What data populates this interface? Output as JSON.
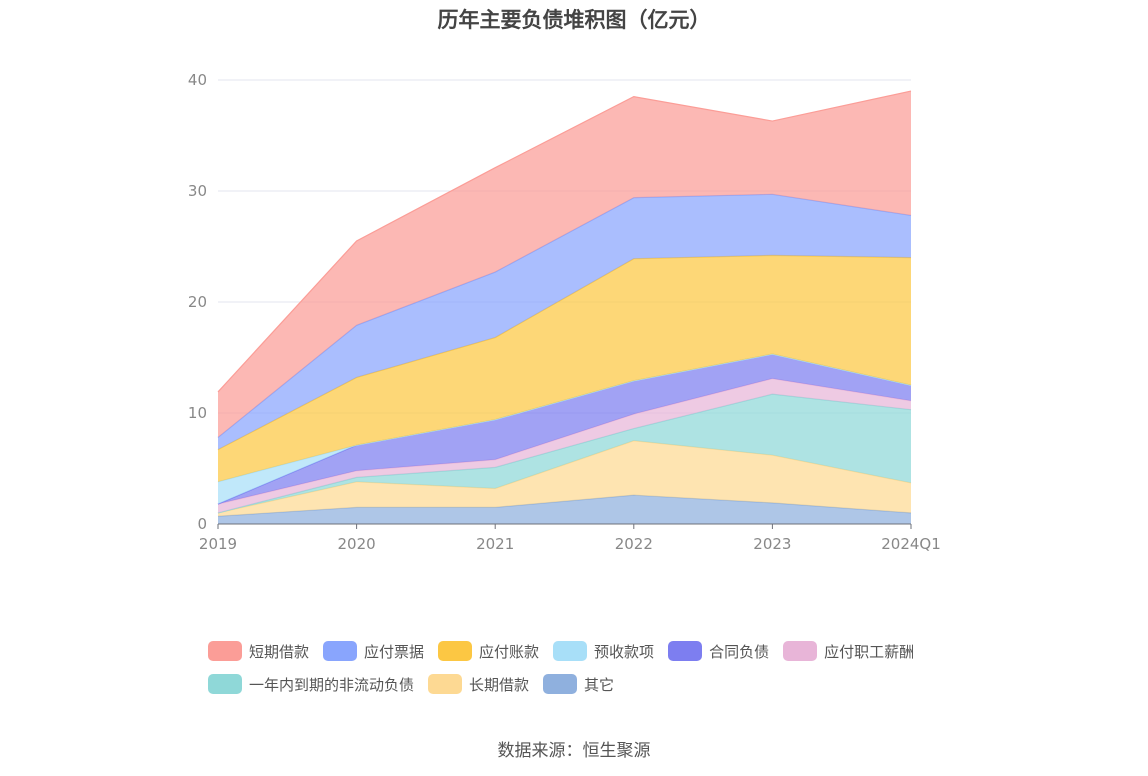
{
  "source_text": "数据来源：恒生聚源",
  "chart_data": {
    "type": "area",
    "stacked": true,
    "title": "历年主要负债堆积图（亿元）",
    "xlabel": "",
    "ylabel": "",
    "categories": [
      "2019",
      "2020",
      "2021",
      "2022",
      "2023",
      "2024Q1"
    ],
    "y_ticks": [
      "0",
      "10",
      "20",
      "30",
      "40"
    ],
    "ylim": [
      0,
      40
    ],
    "grid": "horizontal",
    "legend_position": "bottom",
    "series": [
      {
        "name": "其它",
        "color": "#8fb0de",
        "values": [
          0.7,
          1.5,
          1.5,
          2.6,
          1.9,
          1.0
        ]
      },
      {
        "name": "长期借款",
        "color": "#fdd993",
        "values": [
          0.3,
          2.3,
          1.7,
          4.9,
          4.3,
          2.7
        ]
      },
      {
        "name": "一年内到期的非流动负债",
        "color": "#8fd8d8",
        "values": [
          0.0,
          0.4,
          1.9,
          1.1,
          5.5,
          6.6
        ]
      },
      {
        "name": "应付职工薪酬",
        "color": "#e8b5d8",
        "values": [
          0.8,
          0.6,
          0.7,
          1.3,
          1.4,
          0.8
        ]
      },
      {
        "name": "合同负债",
        "color": "#7d7ef0",
        "values": [
          0.0,
          2.3,
          3.6,
          3.0,
          2.2,
          1.4
        ]
      },
      {
        "name": "预收款项",
        "color": "#a8dff8",
        "values": [
          2.0,
          0.0,
          0.0,
          0.0,
          0.0,
          0.0
        ]
      },
      {
        "name": "应付账款",
        "color": "#fcc743",
        "values": [
          2.9,
          6.1,
          7.4,
          11.0,
          8.9,
          11.5
        ]
      },
      {
        "name": "应付票据",
        "color": "#89a5fd",
        "values": [
          1.1,
          4.7,
          5.9,
          5.5,
          5.5,
          3.8
        ]
      },
      {
        "name": "短期借款",
        "color": "#fb9d97",
        "values": [
          4.1,
          7.6,
          9.4,
          9.1,
          6.6,
          11.2
        ]
      }
    ],
    "legend_order": [
      "短期借款",
      "应付票据",
      "应付账款",
      "预收款项",
      "合同负债",
      "应付职工薪酬",
      "一年内到期的非流动负债",
      "长期借款",
      "其它"
    ]
  }
}
